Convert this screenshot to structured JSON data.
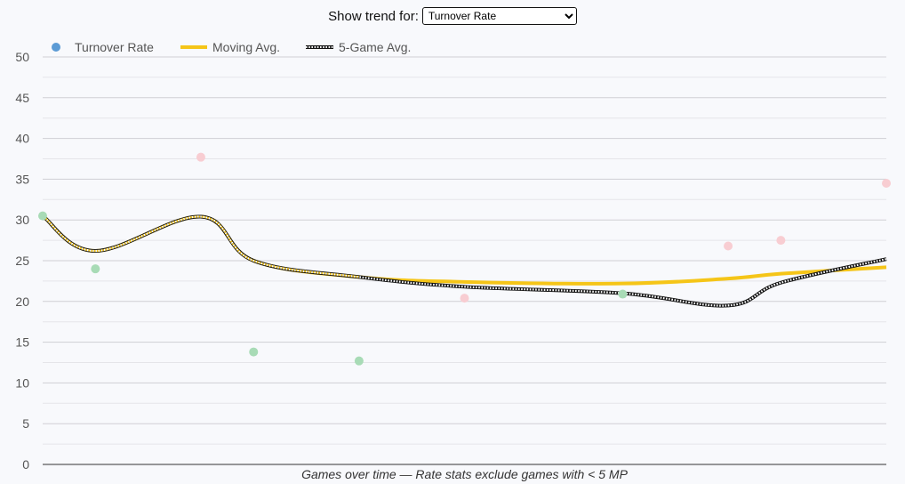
{
  "controls": {
    "trend_label": "Show trend for:",
    "selected_stat": "Turnover Rate"
  },
  "colors": {
    "marker_legend": "#5b9bd5",
    "point_good": "#a8dbb6",
    "point_bad": "#f8cdd2",
    "moving_avg": "#f5c518",
    "five_game_avg": "#111111",
    "gridline": "#cfcfd4",
    "axis": "#333333"
  },
  "chart_data": {
    "type": "line",
    "title": "",
    "xlabel": "Games over time — Rate stats exclude games with < 5 MP",
    "ylabel": "",
    "ylim": [
      0,
      50
    ],
    "yticks": [
      0,
      5,
      10,
      15,
      20,
      25,
      30,
      35,
      40,
      45,
      50
    ],
    "grid": true,
    "legend_position": "top-left",
    "legend": [
      "Turnover Rate",
      "Moving Avg.",
      "5-Game Avg."
    ],
    "points_series": {
      "name": "Turnover Rate",
      "x": [
        1,
        2,
        4,
        5,
        7,
        9,
        12,
        14,
        15,
        17
      ],
      "values": [
        30.5,
        24.0,
        37.7,
        13.8,
        12.7,
        20.4,
        20.9,
        26.8,
        27.5,
        34.5
      ],
      "status": [
        "good",
        "good",
        "bad",
        "good",
        "good",
        "bad",
        "good",
        "bad",
        "bad",
        "bad"
      ]
    },
    "series": [
      {
        "name": "Moving Avg.",
        "x": [
          1,
          2,
          4,
          5,
          7,
          9,
          12,
          14,
          15,
          17
        ],
        "values": [
          30.5,
          26.2,
          30.4,
          25.0,
          23.0,
          22.4,
          22.2,
          22.8,
          23.4,
          24.2
        ]
      },
      {
        "name": "5-Game Avg.",
        "x": [
          1,
          2,
          4,
          5,
          7,
          9,
          12,
          14,
          15,
          17
        ],
        "values": [
          30.5,
          26.2,
          30.4,
          25.0,
          23.0,
          21.8,
          21.0,
          19.5,
          22.3,
          25.2
        ]
      }
    ]
  }
}
